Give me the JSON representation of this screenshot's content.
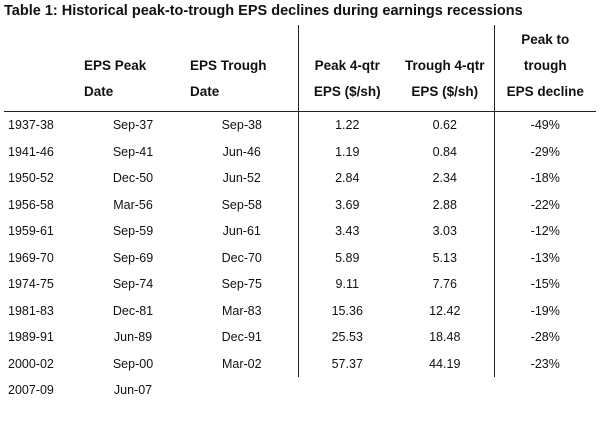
{
  "title": "Table 1: Historical peak-to-trough EPS declines during earnings recessions",
  "columns": [
    [
      "",
      "",
      ""
    ],
    [
      "",
      "EPS Peak",
      "Date"
    ],
    [
      "",
      "EPS Trough",
      "Date"
    ],
    [
      "",
      "Peak 4-qtr",
      "EPS ($/sh)"
    ],
    [
      "",
      "Trough 4-qtr",
      "EPS ($/sh)"
    ],
    [
      "Peak to",
      "trough",
      "EPS decline"
    ]
  ],
  "rows": [
    {
      "period": "1937-38",
      "peak": "Sep-37",
      "trough": "Sep-38",
      "peak_eps": "1.22",
      "trough_eps": "0.62",
      "decline": "-49%"
    },
    {
      "period": "1941-46",
      "peak": "Sep-41",
      "trough": "Jun-46",
      "peak_eps": "1.19",
      "trough_eps": "0.84",
      "decline": "-29%"
    },
    {
      "period": "1950-52",
      "peak": "Dec-50",
      "trough": "Jun-52",
      "peak_eps": "2.84",
      "trough_eps": "2.34",
      "decline": "-18%"
    },
    {
      "period": "1956-58",
      "peak": "Mar-56",
      "trough": "Sep-58",
      "peak_eps": "3.69",
      "trough_eps": "2.88",
      "decline": "-22%"
    },
    {
      "period": "1959-61",
      "peak": "Sep-59",
      "trough": "Jun-61",
      "peak_eps": "3.43",
      "trough_eps": "3.03",
      "decline": "-12%"
    },
    {
      "period": "1969-70",
      "peak": "Sep-69",
      "trough": "Dec-70",
      "peak_eps": "5.89",
      "trough_eps": "5.13",
      "decline": "-13%"
    },
    {
      "period": "1974-75",
      "peak": "Sep-74",
      "trough": "Sep-75",
      "peak_eps": "9.11",
      "trough_eps": "7.76",
      "decline": "-15%"
    },
    {
      "period": "1981-83",
      "peak": "Dec-81",
      "trough": "Mar-83",
      "peak_eps": "15.36",
      "trough_eps": "12.42",
      "decline": "-19%"
    },
    {
      "period": "1989-91",
      "peak": "Jun-89",
      "trough": "Dec-91",
      "peak_eps": "25.53",
      "trough_eps": "18.48",
      "decline": "-28%"
    },
    {
      "period": "2000-02",
      "peak": "Sep-00",
      "trough": "Mar-02",
      "peak_eps": "57.37",
      "trough_eps": "44.19",
      "decline": "-23%"
    },
    {
      "period": "2007-09",
      "peak": "Jun-07",
      "trough": "",
      "peak_eps": "",
      "trough_eps": "",
      "decline": ""
    }
  ]
}
